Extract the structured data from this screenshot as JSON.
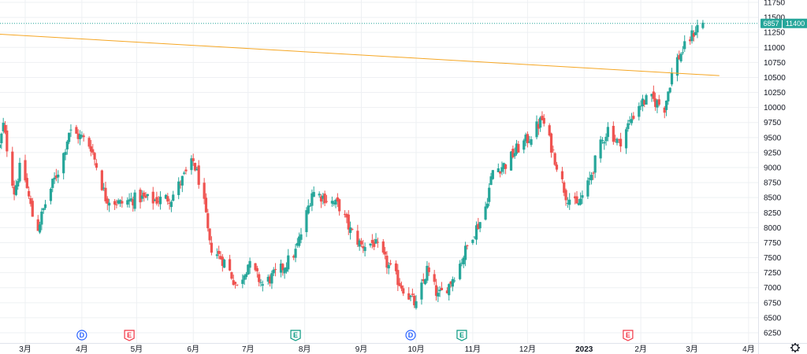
{
  "chart_data": {
    "type": "candlestick",
    "symbol_code": "6857",
    "last_price": 11400,
    "y_ticks": [
      6250,
      6500,
      6750,
      7000,
      7250,
      7500,
      7750,
      8000,
      8250,
      8500,
      8750,
      9000,
      9250,
      9500,
      9750,
      10000,
      10250,
      10500,
      10750,
      11000,
      11250,
      11500,
      11750
    ],
    "ylim": [
      6100,
      11750
    ],
    "x_ticks": [
      {
        "label": "3月",
        "day": 0
      },
      {
        "label": "4月",
        "day": 31
      },
      {
        "label": "5月",
        "day": 61
      },
      {
        "label": "6月",
        "day": 92
      },
      {
        "label": "7月",
        "day": 122
      },
      {
        "label": "8月",
        "day": 153
      },
      {
        "label": "9月",
        "day": 184
      },
      {
        "label": "10月",
        "day": 214
      },
      {
        "label": "11月",
        "day": 245
      },
      {
        "label": "12月",
        "day": 275
      },
      {
        "label": "2023",
        "day": 306,
        "bold": true
      },
      {
        "label": "2月",
        "day": 337
      },
      {
        "label": "3月",
        "day": 365
      },
      {
        "label": "4月",
        "day": 396
      }
    ],
    "trendline": {
      "start": {
        "day": -14,
        "price": 11220
      },
      "end": {
        "day": 380,
        "price": 10530
      },
      "color": "#f5a623"
    },
    "event_markers": [
      {
        "type": "D",
        "day": 31,
        "color": "#2962ff"
      },
      {
        "type": "E",
        "day": 57,
        "color": "#f23645"
      },
      {
        "type": "E",
        "day": 148,
        "color": "#089981"
      },
      {
        "type": "D",
        "day": 211,
        "color": "#2962ff"
      },
      {
        "type": "E",
        "day": 239,
        "color": "#089981"
      },
      {
        "type": "E",
        "day": 330,
        "color": "#f23645"
      }
    ],
    "anchors": [
      {
        "day": -14,
        "price": 9350
      },
      {
        "day": -12,
        "price": 9700
      },
      {
        "day": -6,
        "price": 8600
      },
      {
        "day": -2,
        "price": 9100
      },
      {
        "day": 6,
        "price": 7900
      },
      {
        "day": 12,
        "price": 8500
      },
      {
        "day": 20,
        "price": 9100
      },
      {
        "day": 24,
        "price": 9600
      },
      {
        "day": 31,
        "price": 9500
      },
      {
        "day": 36,
        "price": 9350
      },
      {
        "day": 44,
        "price": 8500
      },
      {
        "day": 52,
        "price": 8400
      },
      {
        "day": 62,
        "price": 8500
      },
      {
        "day": 70,
        "price": 8450
      },
      {
        "day": 80,
        "price": 8500
      },
      {
        "day": 86,
        "price": 8800
      },
      {
        "day": 92,
        "price": 9100
      },
      {
        "day": 97,
        "price": 8600
      },
      {
        "day": 101,
        "price": 7700
      },
      {
        "day": 110,
        "price": 7400
      },
      {
        "day": 116,
        "price": 7000
      },
      {
        "day": 122,
        "price": 7400
      },
      {
        "day": 130,
        "price": 7050
      },
      {
        "day": 140,
        "price": 7300
      },
      {
        "day": 148,
        "price": 7600
      },
      {
        "day": 153,
        "price": 8100
      },
      {
        "day": 157,
        "price": 8600
      },
      {
        "day": 164,
        "price": 8500
      },
      {
        "day": 172,
        "price": 8350
      },
      {
        "day": 178,
        "price": 7950
      },
      {
        "day": 184,
        "price": 7700
      },
      {
        "day": 191,
        "price": 7750
      },
      {
        "day": 200,
        "price": 7300
      },
      {
        "day": 208,
        "price": 6950
      },
      {
        "day": 214,
        "price": 6700
      },
      {
        "day": 220,
        "price": 7300
      },
      {
        "day": 226,
        "price": 6850
      },
      {
        "day": 232,
        "price": 7050
      },
      {
        "day": 238,
        "price": 7400
      },
      {
        "day": 245,
        "price": 7900
      },
      {
        "day": 251,
        "price": 8200
      },
      {
        "day": 256,
        "price": 8950
      },
      {
        "day": 263,
        "price": 9050
      },
      {
        "day": 269,
        "price": 9300
      },
      {
        "day": 276,
        "price": 9500
      },
      {
        "day": 283,
        "price": 9800
      },
      {
        "day": 288,
        "price": 9350
      },
      {
        "day": 292,
        "price": 8950
      },
      {
        "day": 296,
        "price": 8550
      },
      {
        "day": 302,
        "price": 8350
      },
      {
        "day": 308,
        "price": 8700
      },
      {
        "day": 314,
        "price": 9300
      },
      {
        "day": 319,
        "price": 9650
      },
      {
        "day": 325,
        "price": 9400
      },
      {
        "day": 330,
        "price": 9700
      },
      {
        "day": 336,
        "price": 10050
      },
      {
        "day": 342,
        "price": 10150
      },
      {
        "day": 350,
        "price": 10000
      },
      {
        "day": 355,
        "price": 10700
      },
      {
        "day": 360,
        "price": 10950
      },
      {
        "day": 365,
        "price": 11200
      },
      {
        "day": 369,
        "price": 11400
      },
      {
        "day": 371,
        "price": 11400
      }
    ],
    "grid": true,
    "colors": {
      "up": "#26a69a",
      "down": "#ef5350",
      "price_line": "#26a69a",
      "symbol_label_bg": "#5c6bc0",
      "grid": "#eef0f3",
      "axis_border": "#e0e3eb"
    }
  },
  "ui": {
    "settings_icon": "gear-icon"
  }
}
